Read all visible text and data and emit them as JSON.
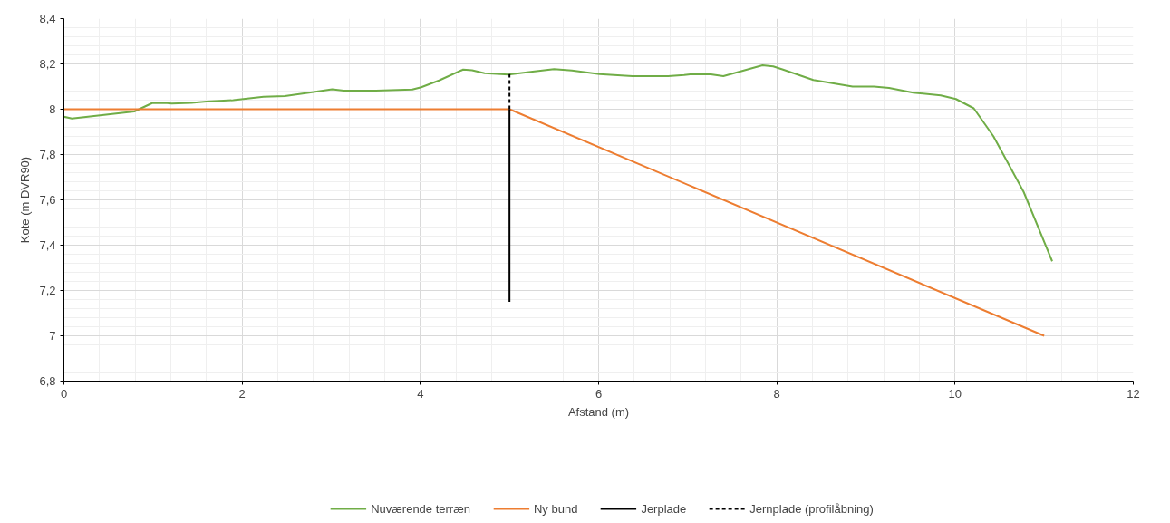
{
  "chart_data": {
    "type": "line",
    "xlabel": "Afstand (m)",
    "ylabel": "Kote (m DVR90)",
    "xlim": [
      0,
      12
    ],
    "xticks": [
      0,
      2,
      4,
      6,
      8,
      10,
      12
    ],
    "ylim": [
      6.8,
      8.4
    ],
    "yticks": [
      {
        "value": 6.8,
        "label": "6,8"
      },
      7,
      {
        "value": 7.2,
        "label": "7,2"
      },
      {
        "value": 7.4,
        "label": "7,4"
      },
      {
        "value": 7.6,
        "label": "7,6"
      },
      {
        "value": 7.8,
        "label": "7,8"
      },
      8,
      {
        "value": 8.2,
        "label": "8,2"
      },
      {
        "value": 8.4,
        "label": "8,4"
      }
    ],
    "grid": true,
    "legend": "bottom",
    "series": [
      {
        "name": "Nuværende terræn",
        "color": "#70ad47",
        "line_style": "solid",
        "x": [
          0,
          0.09,
          0.79,
          0.99,
          1.13,
          1.21,
          1.43,
          1.6,
          1.9,
          2.24,
          2.48,
          2.75,
          3.01,
          3.14,
          3.5,
          3.91,
          4.01,
          4.21,
          4.48,
          4.58,
          4.72,
          4.99,
          5.26,
          5.5,
          5.7,
          6.01,
          6.38,
          6.78,
          6.96,
          7.06,
          7.26,
          7.4,
          7.84,
          7.96,
          8.07,
          8.41,
          8.85,
          9.09,
          9.26,
          9.53,
          9.84,
          10.01,
          10.21,
          10.43,
          10.77,
          11.09
        ],
        "values": [
          7.967,
          7.959,
          7.99,
          8.027,
          8.028,
          8.025,
          8.028,
          8.034,
          8.04,
          8.055,
          8.058,
          8.073,
          8.088,
          8.082,
          8.082,
          8.087,
          8.097,
          8.127,
          8.175,
          8.172,
          8.159,
          8.153,
          8.166,
          8.177,
          8.171,
          8.155,
          8.146,
          8.146,
          8.151,
          8.155,
          8.154,
          8.146,
          8.194,
          8.189,
          8.175,
          8.129,
          8.1,
          8.1,
          8.094,
          8.073,
          8.061,
          8.045,
          8.004,
          7.881,
          7.635,
          7.329
        ]
      },
      {
        "name": "Ny bund",
        "color": "#ed7d31",
        "line_style": "solid",
        "x": [
          0,
          5,
          11
        ],
        "values": [
          8,
          8,
          7
        ]
      },
      {
        "name": "Jerplade",
        "color": "#000000",
        "line_style": "solid",
        "x": [
          5,
          5
        ],
        "values": [
          7.15,
          8
        ]
      },
      {
        "name": "Jernplade (profilåbning)",
        "color": "#000000",
        "line_style": "dashed",
        "x": [
          5,
          5
        ],
        "values": [
          8,
          8.155
        ]
      }
    ]
  }
}
